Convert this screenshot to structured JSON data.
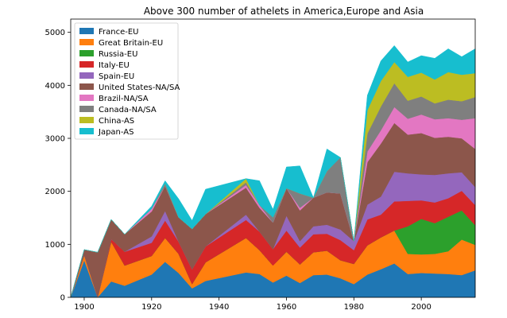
{
  "chart_data": {
    "type": "area",
    "stacked": true,
    "title": "Above 300 number of athelets in America,Europe and Asia",
    "xlabel": "",
    "ylabel": "",
    "xlim": [
      1896,
      2016
    ],
    "ylim": [
      0,
      5250
    ],
    "x_ticks": [
      1900,
      1920,
      1940,
      1960,
      1980,
      2000
    ],
    "y_ticks": [
      0,
      1000,
      2000,
      3000,
      4000,
      5000
    ],
    "grid": false,
    "legend_position": "upper-left",
    "x": [
      1896,
      1900,
      1904,
      1908,
      1912,
      1920,
      1924,
      1928,
      1932,
      1936,
      1948,
      1952,
      1956,
      1960,
      1964,
      1968,
      1972,
      1976,
      1980,
      1984,
      1988,
      1992,
      1996,
      2000,
      2004,
      2008,
      2012,
      2016
    ],
    "series": [
      {
        "name": "France-EU",
        "color": "#1f77b4",
        "values": [
          0,
          700,
          0,
          300,
          220,
          430,
          670,
          460,
          170,
          310,
          470,
          440,
          280,
          410,
          270,
          420,
          430,
          360,
          250,
          430,
          530,
          640,
          440,
          460,
          450,
          440,
          420,
          510
        ]
      },
      {
        "name": "Great Britain-EU",
        "color": "#ff7f0e",
        "values": [
          0,
          100,
          0,
          750,
          380,
          350,
          450,
          360,
          80,
          350,
          650,
          450,
          320,
          450,
          350,
          430,
          450,
          340,
          380,
          550,
          600,
          620,
          380,
          350,
          370,
          430,
          670,
          480
        ]
      },
      {
        "name": "Russia-EU",
        "color": "#2ca02c",
        "values": [
          0,
          0,
          0,
          0,
          0,
          0,
          0,
          0,
          0,
          0,
          0,
          0,
          0,
          0,
          0,
          0,
          0,
          0,
          0,
          0,
          0,
          0,
          520,
          670,
          580,
          650,
          550,
          370
        ]
      },
      {
        "name": "Italy-EU",
        "color": "#d62728",
        "values": [
          0,
          0,
          0,
          50,
          260,
          250,
          330,
          230,
          280,
          300,
          340,
          350,
          310,
          400,
          320,
          340,
          320,
          380,
          260,
          490,
          430,
          550,
          480,
          350,
          390,
          350,
          370,
          380
        ]
      },
      {
        "name": "Spain-EU",
        "color": "#9467bd",
        "values": [
          0,
          0,
          0,
          0,
          0,
          120,
          180,
          0,
          0,
          0,
          100,
          0,
          0,
          280,
          120,
          150,
          170,
          200,
          170,
          280,
          340,
          560,
          520,
          490,
          520,
          470,
          350,
          340
        ]
      },
      {
        "name": "United States-NA/SA",
        "color": "#8c564b",
        "values": [
          0,
          100,
          850,
          370,
          330,
          470,
          470,
          460,
          760,
          610,
          510,
          450,
          500,
          520,
          580,
          540,
          610,
          680,
          0,
          800,
          1000,
          920,
          730,
          780,
          700,
          690,
          640,
          720
        ]
      },
      {
        "name": "Brazil-NA/SA",
        "color": "#e377c2",
        "values": [
          0,
          0,
          0,
          0,
          0,
          50,
          0,
          0,
          0,
          0,
          50,
          50,
          0,
          0,
          50,
          0,
          0,
          0,
          0,
          200,
          250,
          300,
          300,
          350,
          350,
          350,
          350,
          580
        ]
      },
      {
        "name": "Canada-NA/SA",
        "color": "#7f7f7f",
        "values": [
          0,
          0,
          0,
          0,
          0,
          0,
          50,
          0,
          0,
          0,
          50,
          0,
          100,
          0,
          270,
          0,
          400,
          680,
          0,
          340,
          450,
          450,
          340,
          340,
          300,
          350,
          350,
          400
        ]
      },
      {
        "name": "China-AS",
        "color": "#bcbd22",
        "values": [
          0,
          0,
          0,
          0,
          0,
          0,
          0,
          0,
          0,
          0,
          70,
          0,
          0,
          0,
          0,
          0,
          0,
          0,
          0,
          440,
          480,
          400,
          450,
          450,
          450,
          520,
          500,
          450
        ]
      },
      {
        "name": "Japan-AS",
        "color": "#17becf",
        "values": [
          0,
          0,
          0,
          0,
          0,
          50,
          50,
          350,
          160,
          470,
          0,
          460,
          150,
          400,
          520,
          0,
          420,
          0,
          0,
          280,
          380,
          310,
          280,
          320,
          400,
          440,
          340,
          460
        ]
      }
    ]
  }
}
